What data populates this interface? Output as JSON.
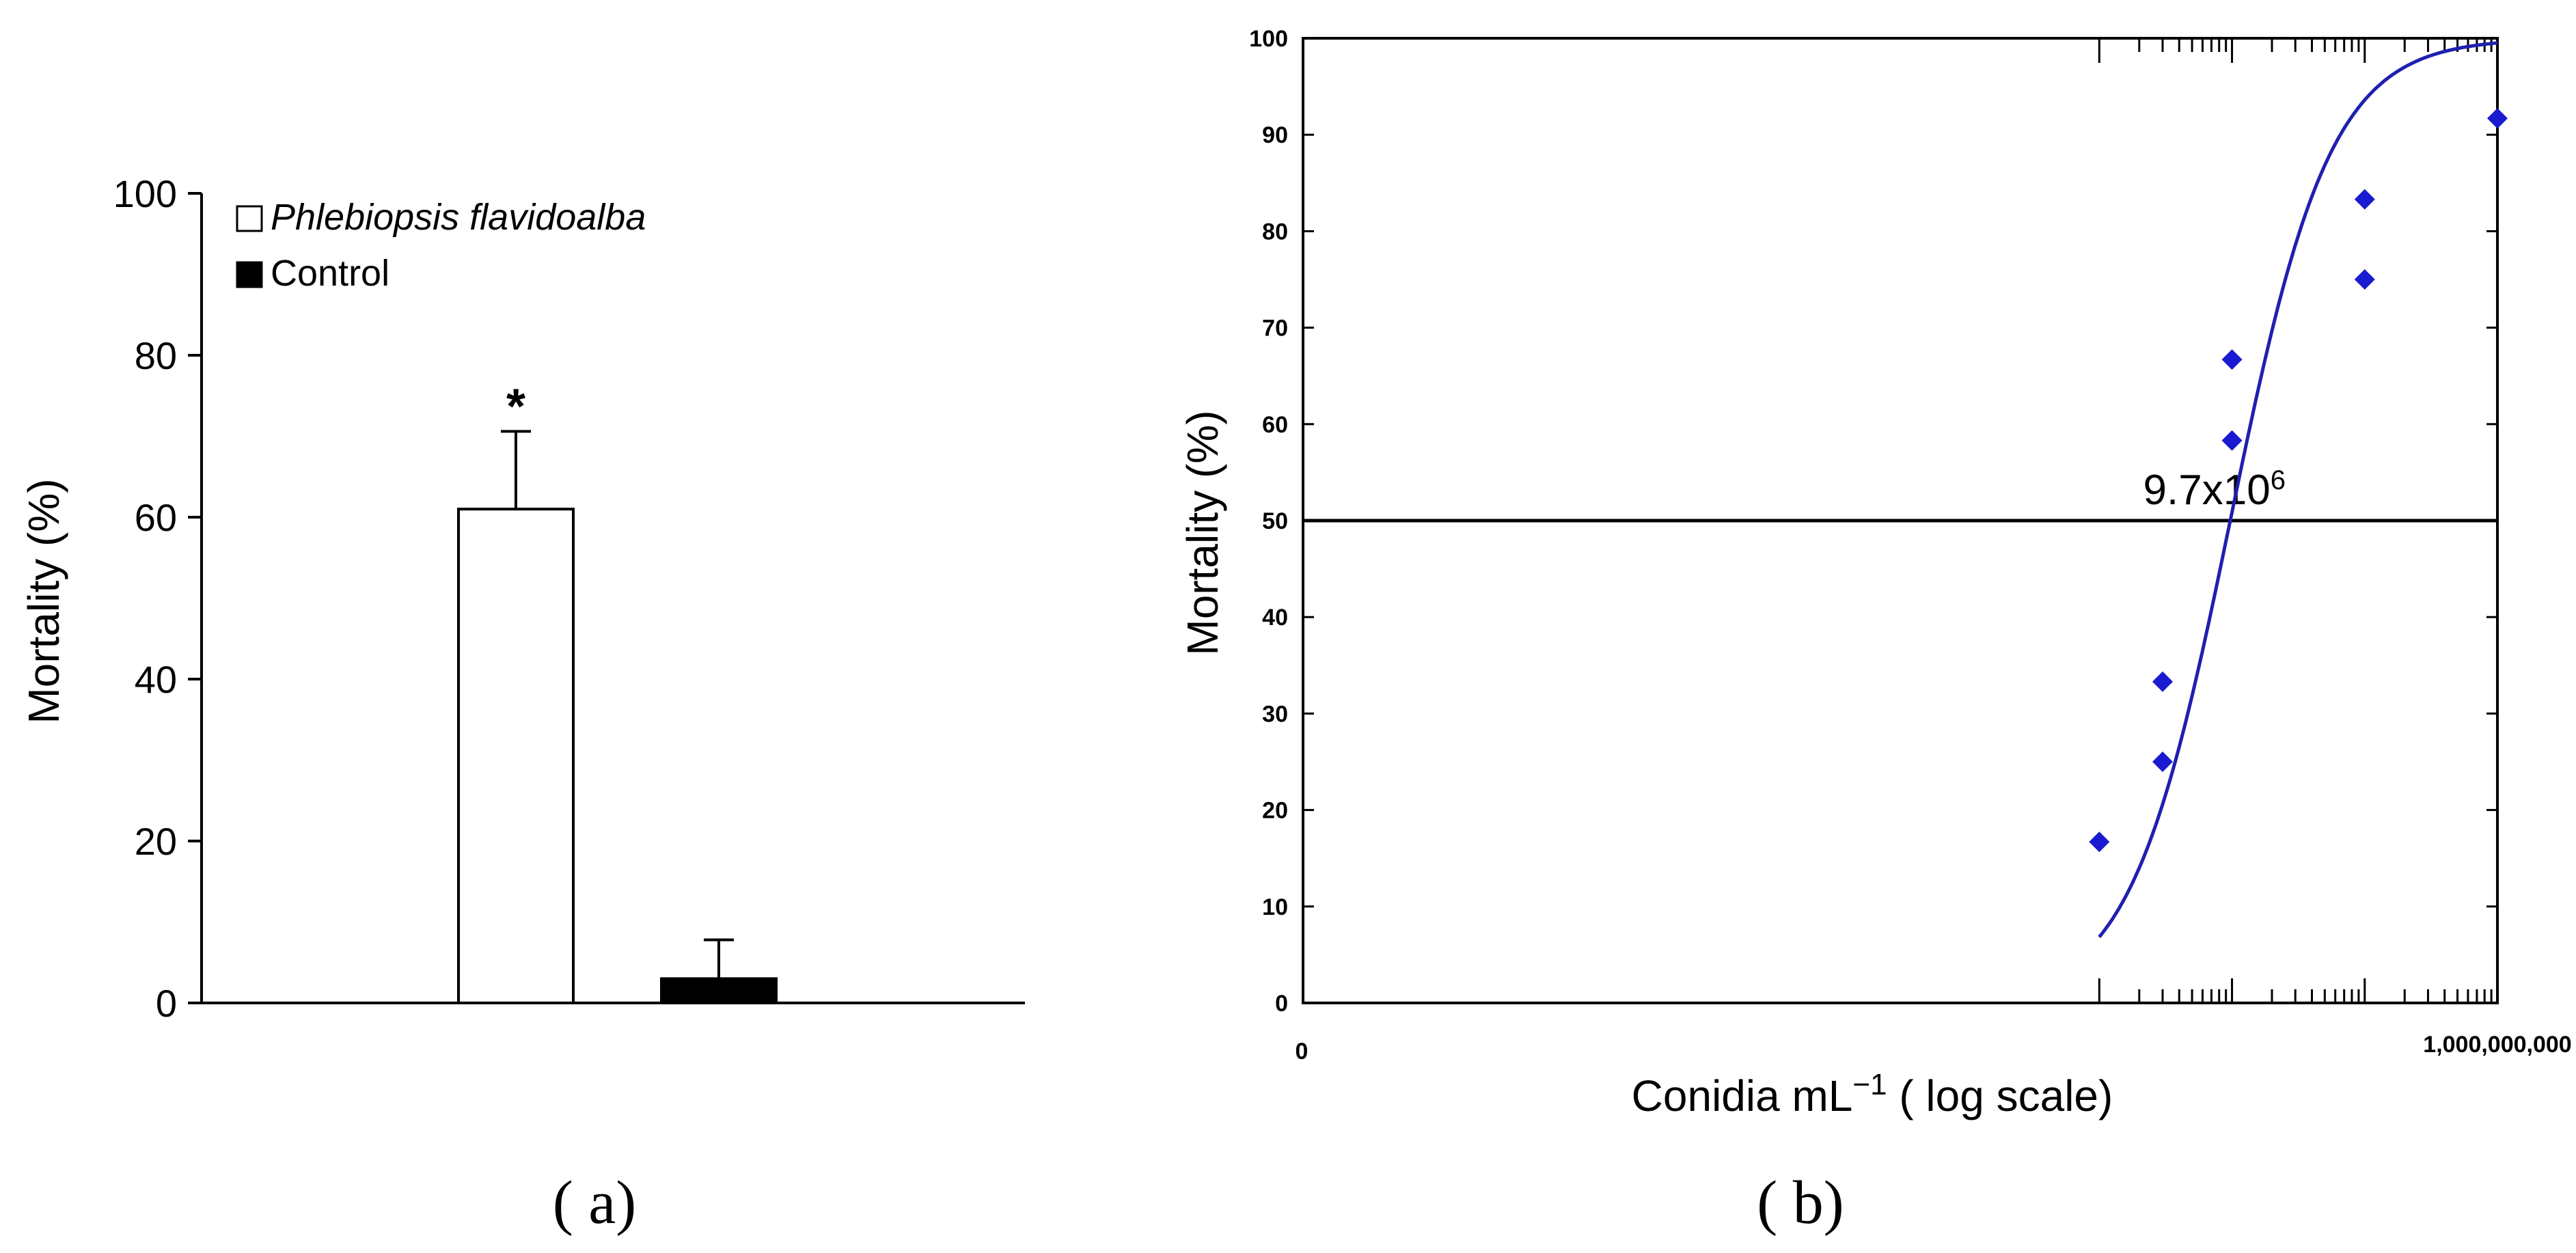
{
  "chart_data": [
    {
      "type": "bar",
      "panel_label": "( a)",
      "ylabel": "Mortality (%)",
      "ylim": [
        0,
        100
      ],
      "yticks": [
        "0",
        "20",
        "40",
        "60",
        "80",
        "100"
      ],
      "categories": [
        "Phlebiopsis flavidoalba",
        "Control"
      ],
      "values": [
        61,
        3
      ],
      "errors": [
        9.6,
        4.8
      ],
      "bar_colors": [
        "#ffffff",
        "#000000"
      ],
      "annotations": [
        {
          "text": "*",
          "category": "Phlebiopsis flavidoalba"
        }
      ],
      "legend": {
        "placement": "top-left",
        "entries": [
          {
            "label": "Phlebiopsis flavidoalba",
            "fill": "#ffffff",
            "italic": true
          },
          {
            "label": "Control",
            "fill": "#000000",
            "italic": false
          }
        ]
      }
    },
    {
      "type": "scatter",
      "panel_label": "( b)",
      "ylabel": "Mortality (%)",
      "xlabel_main": "Conidia mL",
      "xlabel_sup": "−1",
      "xlabel_tail": "  ( log scale)",
      "xscale": "log",
      "x_start_label": "0",
      "x_end_label": "1,000,000,000",
      "xlim": [
        1,
        1000000000
      ],
      "ylim": [
        0,
        100
      ],
      "yticks": [
        "0",
        "10",
        "20",
        "30",
        "40",
        "50",
        "60",
        "70",
        "80",
        "90",
        "100"
      ],
      "points": [
        {
          "x": 1000000,
          "y": 16.7
        },
        {
          "x": 3000000,
          "y": 33.3
        },
        {
          "x": 3000000,
          "y": 25
        },
        {
          "x": 10000000,
          "y": 66.7
        },
        {
          "x": 10000000,
          "y": 58.3
        },
        {
          "x": 100000000,
          "y": 83.3
        },
        {
          "x": 100000000,
          "y": 75
        },
        {
          "x": 1000000000,
          "y": 91.7
        }
      ],
      "fit_curve": {
        "type": "sigmoid",
        "x_from": 1000000,
        "x_to": 1000000000,
        "color": "#1f1fb0"
      },
      "point_color": "#1a1ad0",
      "reference_line_y": 50,
      "annotation": {
        "base": "9.7x10",
        "sup": "6"
      }
    }
  ]
}
